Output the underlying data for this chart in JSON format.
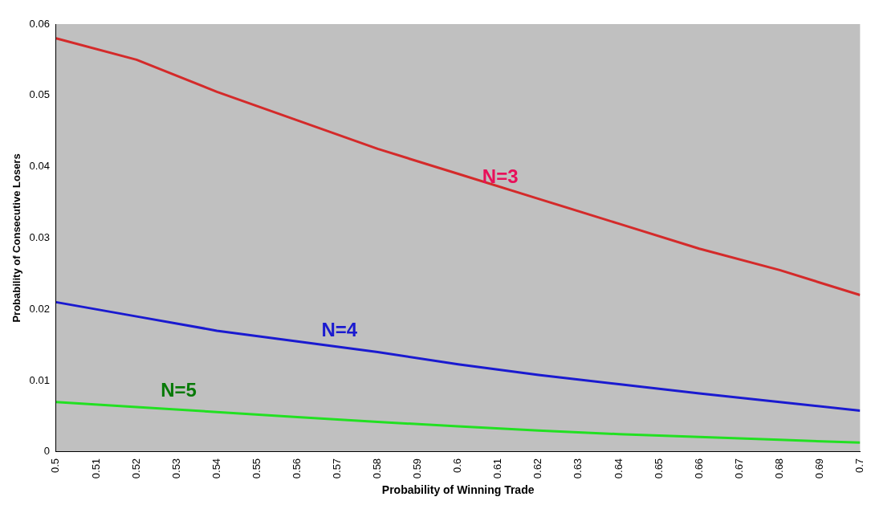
{
  "chart_data": {
    "type": "line",
    "xlabel": "Probability of Winning Trade",
    "ylabel": "Probability of Consecutive Losers",
    "x": [
      0.5,
      0.52,
      0.54,
      0.56,
      0.58,
      0.6,
      0.62,
      0.64,
      0.66,
      0.68,
      0.7
    ],
    "series": [
      {
        "name": "N=3",
        "color": "#d42a2a",
        "values": [
          0.058,
          0.055,
          0.0505,
          0.0465,
          0.0425,
          0.039,
          0.0355,
          0.032,
          0.0285,
          0.0255,
          0.022
        ]
      },
      {
        "name": "N=4",
        "color": "#1a1ad0",
        "values": [
          0.021,
          0.019,
          0.017,
          0.0155,
          0.014,
          0.0123,
          0.0108,
          0.0095,
          0.0082,
          0.007,
          0.0058
        ]
      },
      {
        "name": "N=5",
        "color": "#22e022",
        "values": [
          0.007,
          0.0063,
          0.0056,
          0.0049,
          0.0042,
          0.0036,
          0.003,
          0.0025,
          0.0021,
          0.0017,
          0.0013
        ]
      }
    ],
    "xlim": [
      0.5,
      0.7
    ],
    "xticks": [
      0.5,
      0.51,
      0.52,
      0.53,
      0.54,
      0.55,
      0.56,
      0.57,
      0.58,
      0.59,
      0.6,
      0.61,
      0.62,
      0.63,
      0.64,
      0.65,
      0.66,
      0.67,
      0.68,
      0.69,
      0.7
    ],
    "ylim": [
      0,
      0.06
    ],
    "yticks": [
      0,
      0.01,
      0.02,
      0.03,
      0.04,
      0.05,
      0.06
    ],
    "grid": false,
    "legend": false,
    "marker": "none",
    "line_style": "solid"
  }
}
